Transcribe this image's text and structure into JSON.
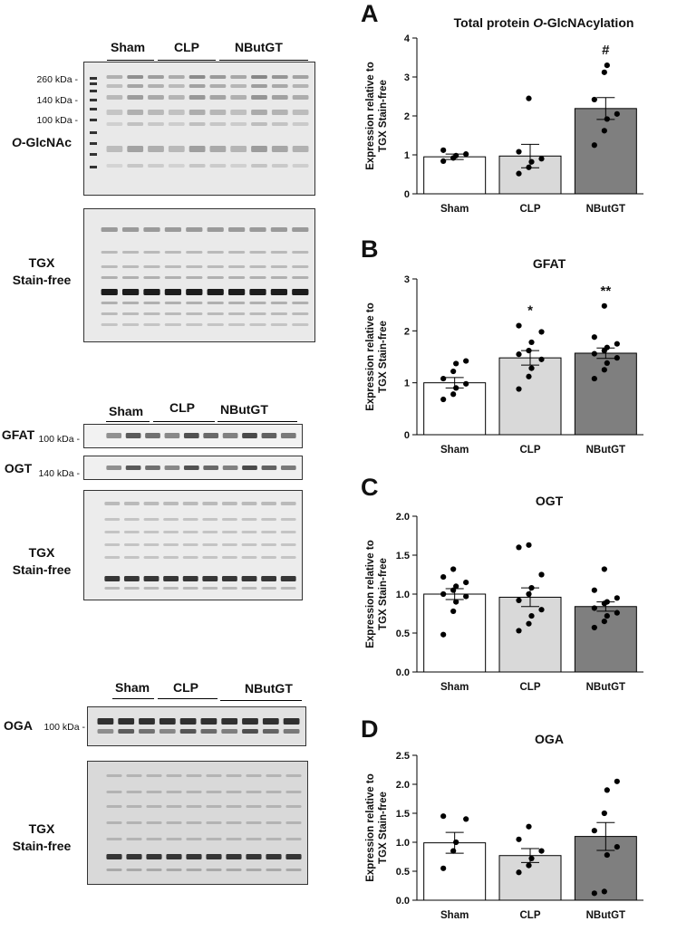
{
  "blots": [
    {
      "groups": [
        "Sham",
        "CLP",
        "NButGT"
      ],
      "markers": [
        "260 kDa -",
        "140 kDa -",
        "100 kDa -"
      ],
      "label_italic": "O",
      "label_rest": "-GlcNAc",
      "stain_line1": "TGX",
      "stain_line2": "Stain-free"
    },
    {
      "groups": [
        "Sham",
        "CLP",
        "NButGT"
      ],
      "gfat_label": "GFAT",
      "gfat_marker": "100 kDa -",
      "ogt_label": "OGT",
      "ogt_marker": "140 kDa -",
      "stain_line1": "TGX",
      "stain_line2": "Stain-free"
    },
    {
      "groups": [
        "Sham",
        "CLP",
        "NButGT"
      ],
      "oga_label": "OGA",
      "oga_marker": "100 kDa -",
      "stain_line1": "TGX",
      "stain_line2": "Stain-free"
    }
  ],
  "chart_data": [
    {
      "panel": "A",
      "type": "bar",
      "title_italic": "O",
      "title_pre": "Total protein ",
      "title_post": "-GlcNAcylation",
      "ylabel_line1": "Expression relative to",
      "ylabel_line2": "TGX Stain-free",
      "categories": [
        "Sham",
        "CLP",
        "NButGT"
      ],
      "values": [
        0.95,
        0.97,
        2.19
      ],
      "sem": [
        0.07,
        0.3,
        0.28
      ],
      "points": [
        [
          0.84,
          0.92,
          0.98,
          1.02,
          1.12
        ],
        [
          0.52,
          0.68,
          0.82,
          0.9,
          1.08,
          2.45
        ],
        [
          1.25,
          1.62,
          1.92,
          2.05,
          2.42,
          3.12,
          3.3
        ]
      ],
      "annotations": [
        "",
        "",
        "#"
      ],
      "bar_colors": [
        "#ffffff",
        "#d9d9d9",
        "#7f7f7f"
      ],
      "ylim": [
        0,
        4
      ],
      "yticks": [
        "0",
        "1",
        "2",
        "3",
        "4"
      ]
    },
    {
      "panel": "B",
      "type": "bar",
      "title": "GFAT",
      "ylabel_line1": "Expression relative to",
      "ylabel_line2": "TGX Stain-free",
      "categories": [
        "Sham",
        "CLP",
        "NButGT"
      ],
      "values": [
        1.0,
        1.48,
        1.57
      ],
      "sem": [
        0.1,
        0.14,
        0.1
      ],
      "points": [
        [
          0.68,
          0.78,
          0.9,
          0.98,
          1.08,
          1.22,
          1.37,
          1.42
        ],
        [
          0.88,
          1.12,
          1.28,
          1.45,
          1.55,
          1.62,
          1.78,
          1.98,
          2.1
        ],
        [
          1.08,
          1.25,
          1.38,
          1.48,
          1.56,
          1.62,
          1.68,
          1.75,
          1.88,
          2.48
        ]
      ],
      "annotations": [
        "",
        "*",
        "**"
      ],
      "bar_colors": [
        "#ffffff",
        "#d9d9d9",
        "#7f7f7f"
      ],
      "ylim": [
        0,
        3
      ],
      "yticks": [
        "0",
        "1",
        "2",
        "3"
      ]
    },
    {
      "panel": "C",
      "type": "bar",
      "title": "OGT",
      "ylabel_line1": "Expression relative to",
      "ylabel_line2": "TGX Stain-free",
      "categories": [
        "Sham",
        "CLP",
        "NButGT"
      ],
      "values": [
        1.0,
        0.96,
        0.84
      ],
      "sem": [
        0.07,
        0.12,
        0.06
      ],
      "points": [
        [
          0.48,
          0.78,
          0.9,
          0.97,
          1.0,
          1.05,
          1.1,
          1.15,
          1.22,
          1.32
        ],
        [
          0.53,
          0.62,
          0.72,
          0.8,
          0.92,
          1.0,
          1.08,
          1.25,
          1.6,
          1.63
        ],
        [
          0.57,
          0.65,
          0.72,
          0.76,
          0.82,
          0.88,
          0.9,
          0.95,
          1.05,
          1.32
        ]
      ],
      "annotations": [
        "",
        "",
        ""
      ],
      "bar_colors": [
        "#ffffff",
        "#d9d9d9",
        "#7f7f7f"
      ],
      "ylim": [
        0,
        2.0
      ],
      "yticks": [
        "0.0",
        "0.5",
        "1.0",
        "1.5",
        "2.0"
      ]
    },
    {
      "panel": "D",
      "type": "bar",
      "title": "OGA",
      "ylabel_line1": "Expression relative to",
      "ylabel_line2": "TGX Stain-free",
      "categories": [
        "Sham",
        "CLP",
        "NButGT"
      ],
      "values": [
        0.99,
        0.77,
        1.1
      ],
      "sem": [
        0.18,
        0.12,
        0.24
      ],
      "points": [
        [
          0.55,
          0.85,
          1.0,
          1.4,
          1.45
        ],
        [
          0.48,
          0.6,
          0.72,
          0.85,
          1.05,
          1.27
        ],
        [
          0.12,
          0.15,
          0.78,
          0.92,
          1.2,
          1.5,
          1.9,
          2.05
        ]
      ],
      "annotations": [
        "",
        "",
        ""
      ],
      "bar_colors": [
        "#ffffff",
        "#d9d9d9",
        "#7f7f7f"
      ],
      "ylim": [
        0,
        2.5
      ],
      "yticks": [
        "0.0",
        "0.5",
        "1.0",
        "1.5",
        "2.0",
        "2.5"
      ]
    }
  ]
}
